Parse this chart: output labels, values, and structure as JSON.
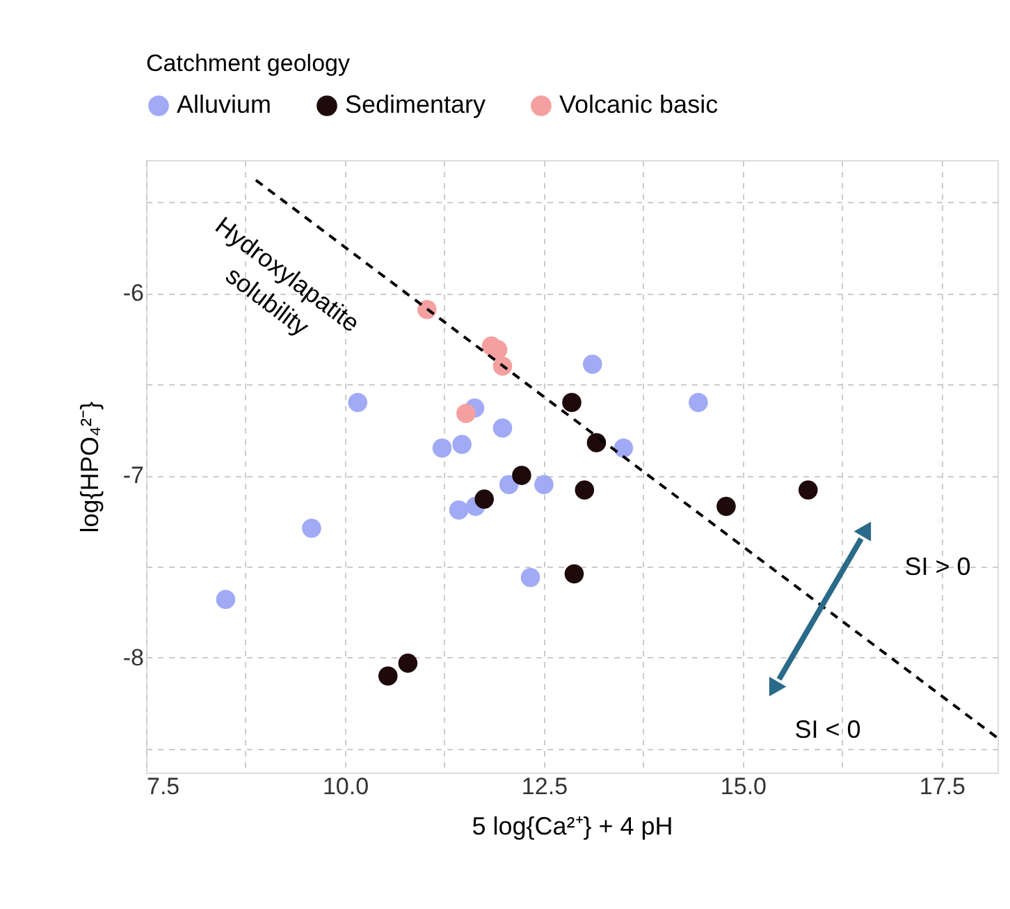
{
  "chart_data": {
    "type": "scatter",
    "xlabel": "5 log{Ca²⁺} + 4 pH",
    "ylabel": "log{HPO₄²⁻}",
    "legend_title": "Catchment geology",
    "legend": "top",
    "grid": true,
    "marker": "circle",
    "xlim": [
      7.5,
      18.2
    ],
    "ylim": [
      -8.63,
      -5.27
    ],
    "xticks": [
      {
        "value": 7.5,
        "label": "7.5"
      },
      {
        "value": 8.75,
        "label": null
      },
      {
        "value": 10,
        "label": "10.0"
      },
      {
        "value": 11.25,
        "label": null
      },
      {
        "value": 12.5,
        "label": "12.5"
      },
      {
        "value": 13.75,
        "label": null
      },
      {
        "value": 15,
        "label": "15.0"
      },
      {
        "value": 16.25,
        "label": null
      },
      {
        "value": 17.5,
        "label": "17.5"
      }
    ],
    "yticks": [
      {
        "value": -5.5,
        "label": null
      },
      -6,
      {
        "value": -6.5,
        "label": null
      },
      -7,
      {
        "value": -7.5,
        "label": null
      },
      -8,
      {
        "value": -8.5,
        "label": null
      }
    ],
    "series": [
      {
        "name": "Alluvium",
        "color": "#a0aaf5",
        "x": [
          8.5,
          9.58,
          10.16,
          11.22,
          11.47,
          11.63,
          11.98,
          11.43,
          11.64,
          12.06,
          12.5,
          12.33,
          13.11,
          13.5,
          14.44
        ],
        "values": [
          -7.68,
          -7.29,
          -6.6,
          -6.85,
          -6.83,
          -6.63,
          -6.74,
          -7.19,
          -7.17,
          -7.05,
          -7.05,
          -7.56,
          -6.39,
          -6.85,
          -6.6
        ]
      },
      {
        "name": "Sedimentary",
        "color": "#1e0a0a",
        "x": [
          10.54,
          10.79,
          11.75,
          12.22,
          12.85,
          13.16,
          13.01,
          12.88,
          14.79,
          15.82
        ],
        "values": [
          -8.1,
          -8.03,
          -7.13,
          -7.0,
          -6.6,
          -6.82,
          -7.08,
          -7.54,
          -7.17,
          -7.08
        ]
      },
      {
        "name": "Volcanic basic",
        "color": "#f5a0a0",
        "x": [
          11.03,
          11.84,
          11.92,
          11.98,
          11.52
        ],
        "values": [
          -6.09,
          -6.29,
          -6.31,
          -6.4,
          -6.66
        ]
      },
      {
        "type": "line",
        "line_style": "dashed",
        "marker": "none",
        "color": "#000000",
        "x": [
          8.88,
          18.2
        ],
        "values": [
          -5.38,
          -8.44
        ]
      }
    ],
    "annotations": [
      "Hydroxylapatite\nsolubility",
      "SI > 0",
      "SI < 0"
    ]
  }
}
